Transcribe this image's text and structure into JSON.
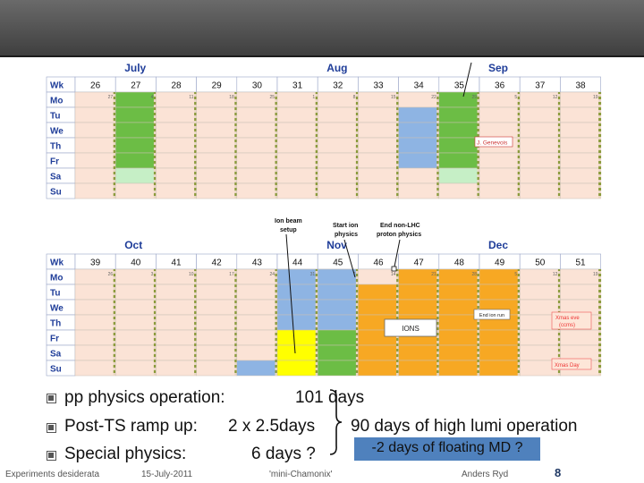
{
  "calendar": {
    "row_labels": [
      "Wk",
      "Mo",
      "Tu",
      "We",
      "Th",
      "Fr",
      "Sa",
      "Su"
    ],
    "top": {
      "months": [
        {
          "label": "July",
          "col": 1
        },
        {
          "label": "Aug",
          "col": 6
        },
        {
          "label": "Sep",
          "col": 10
        }
      ],
      "weeks": [
        "26",
        "27",
        "28",
        "29",
        "30",
        "31",
        "32",
        "33",
        "34",
        "35",
        "36",
        "37",
        "38"
      ],
      "dates": [
        "27",
        "4",
        "11",
        "18",
        "25",
        "1",
        "8",
        "15",
        "22",
        "29",
        "5",
        "12",
        "19"
      ],
      "notes": {
        "genevois": "J. Genevois"
      }
    },
    "bottom": {
      "months": [
        {
          "label": "Oct",
          "col": 1
        },
        {
          "label": "Nov",
          "col": 6
        },
        {
          "label": "Dec",
          "col": 10
        }
      ],
      "weeks": [
        "39",
        "40",
        "41",
        "42",
        "43",
        "44",
        "45",
        "46",
        "47",
        "48",
        "49",
        "50",
        "51"
      ],
      "dates": [
        "26",
        "3",
        "10",
        "17",
        "24",
        "31",
        "7",
        "14",
        "21",
        "28",
        "5",
        "12",
        "19"
      ],
      "annotations": {
        "ion_setup": [
          "Ion beam",
          "setup"
        ],
        "start_ion": [
          "Start ion",
          "physics"
        ],
        "end_proton": [
          "End non-LHC",
          "proton physics"
        ]
      },
      "labels": {
        "ions": "IONS",
        "end_ion_run": "End ion run",
        "xmas_eve": [
          "Xmas eve",
          "(ccms)"
        ],
        "xmas_day": "Xmas Day"
      }
    }
  },
  "summary": {
    "items": [
      {
        "label": "pp physics operation:",
        "value": "101 days"
      },
      {
        "label": "Post-TS ramp up:",
        "value": "2 x 2.5days"
      },
      {
        "label": "Special physics:",
        "value": "6 days ?"
      }
    ],
    "high_lumi": "90 days of high lumi operation",
    "floating_md": "-2 days of floating MD ?"
  },
  "footer": {
    "title": "Experiments desiderata",
    "date": "15-July-2011",
    "event": "'mini-Chamonix'",
    "author": "Anders Ryd",
    "page": "8"
  },
  "colors": {
    "peach": "#fbe3d6",
    "green": "#6cbd45",
    "light_green": "#c6efc6",
    "blue": "#8eb4e3",
    "yellow": "#ffff00",
    "orange": "#f7a823",
    "label_blue": "#1f3d99",
    "weeks_bg": "#ffffff"
  }
}
